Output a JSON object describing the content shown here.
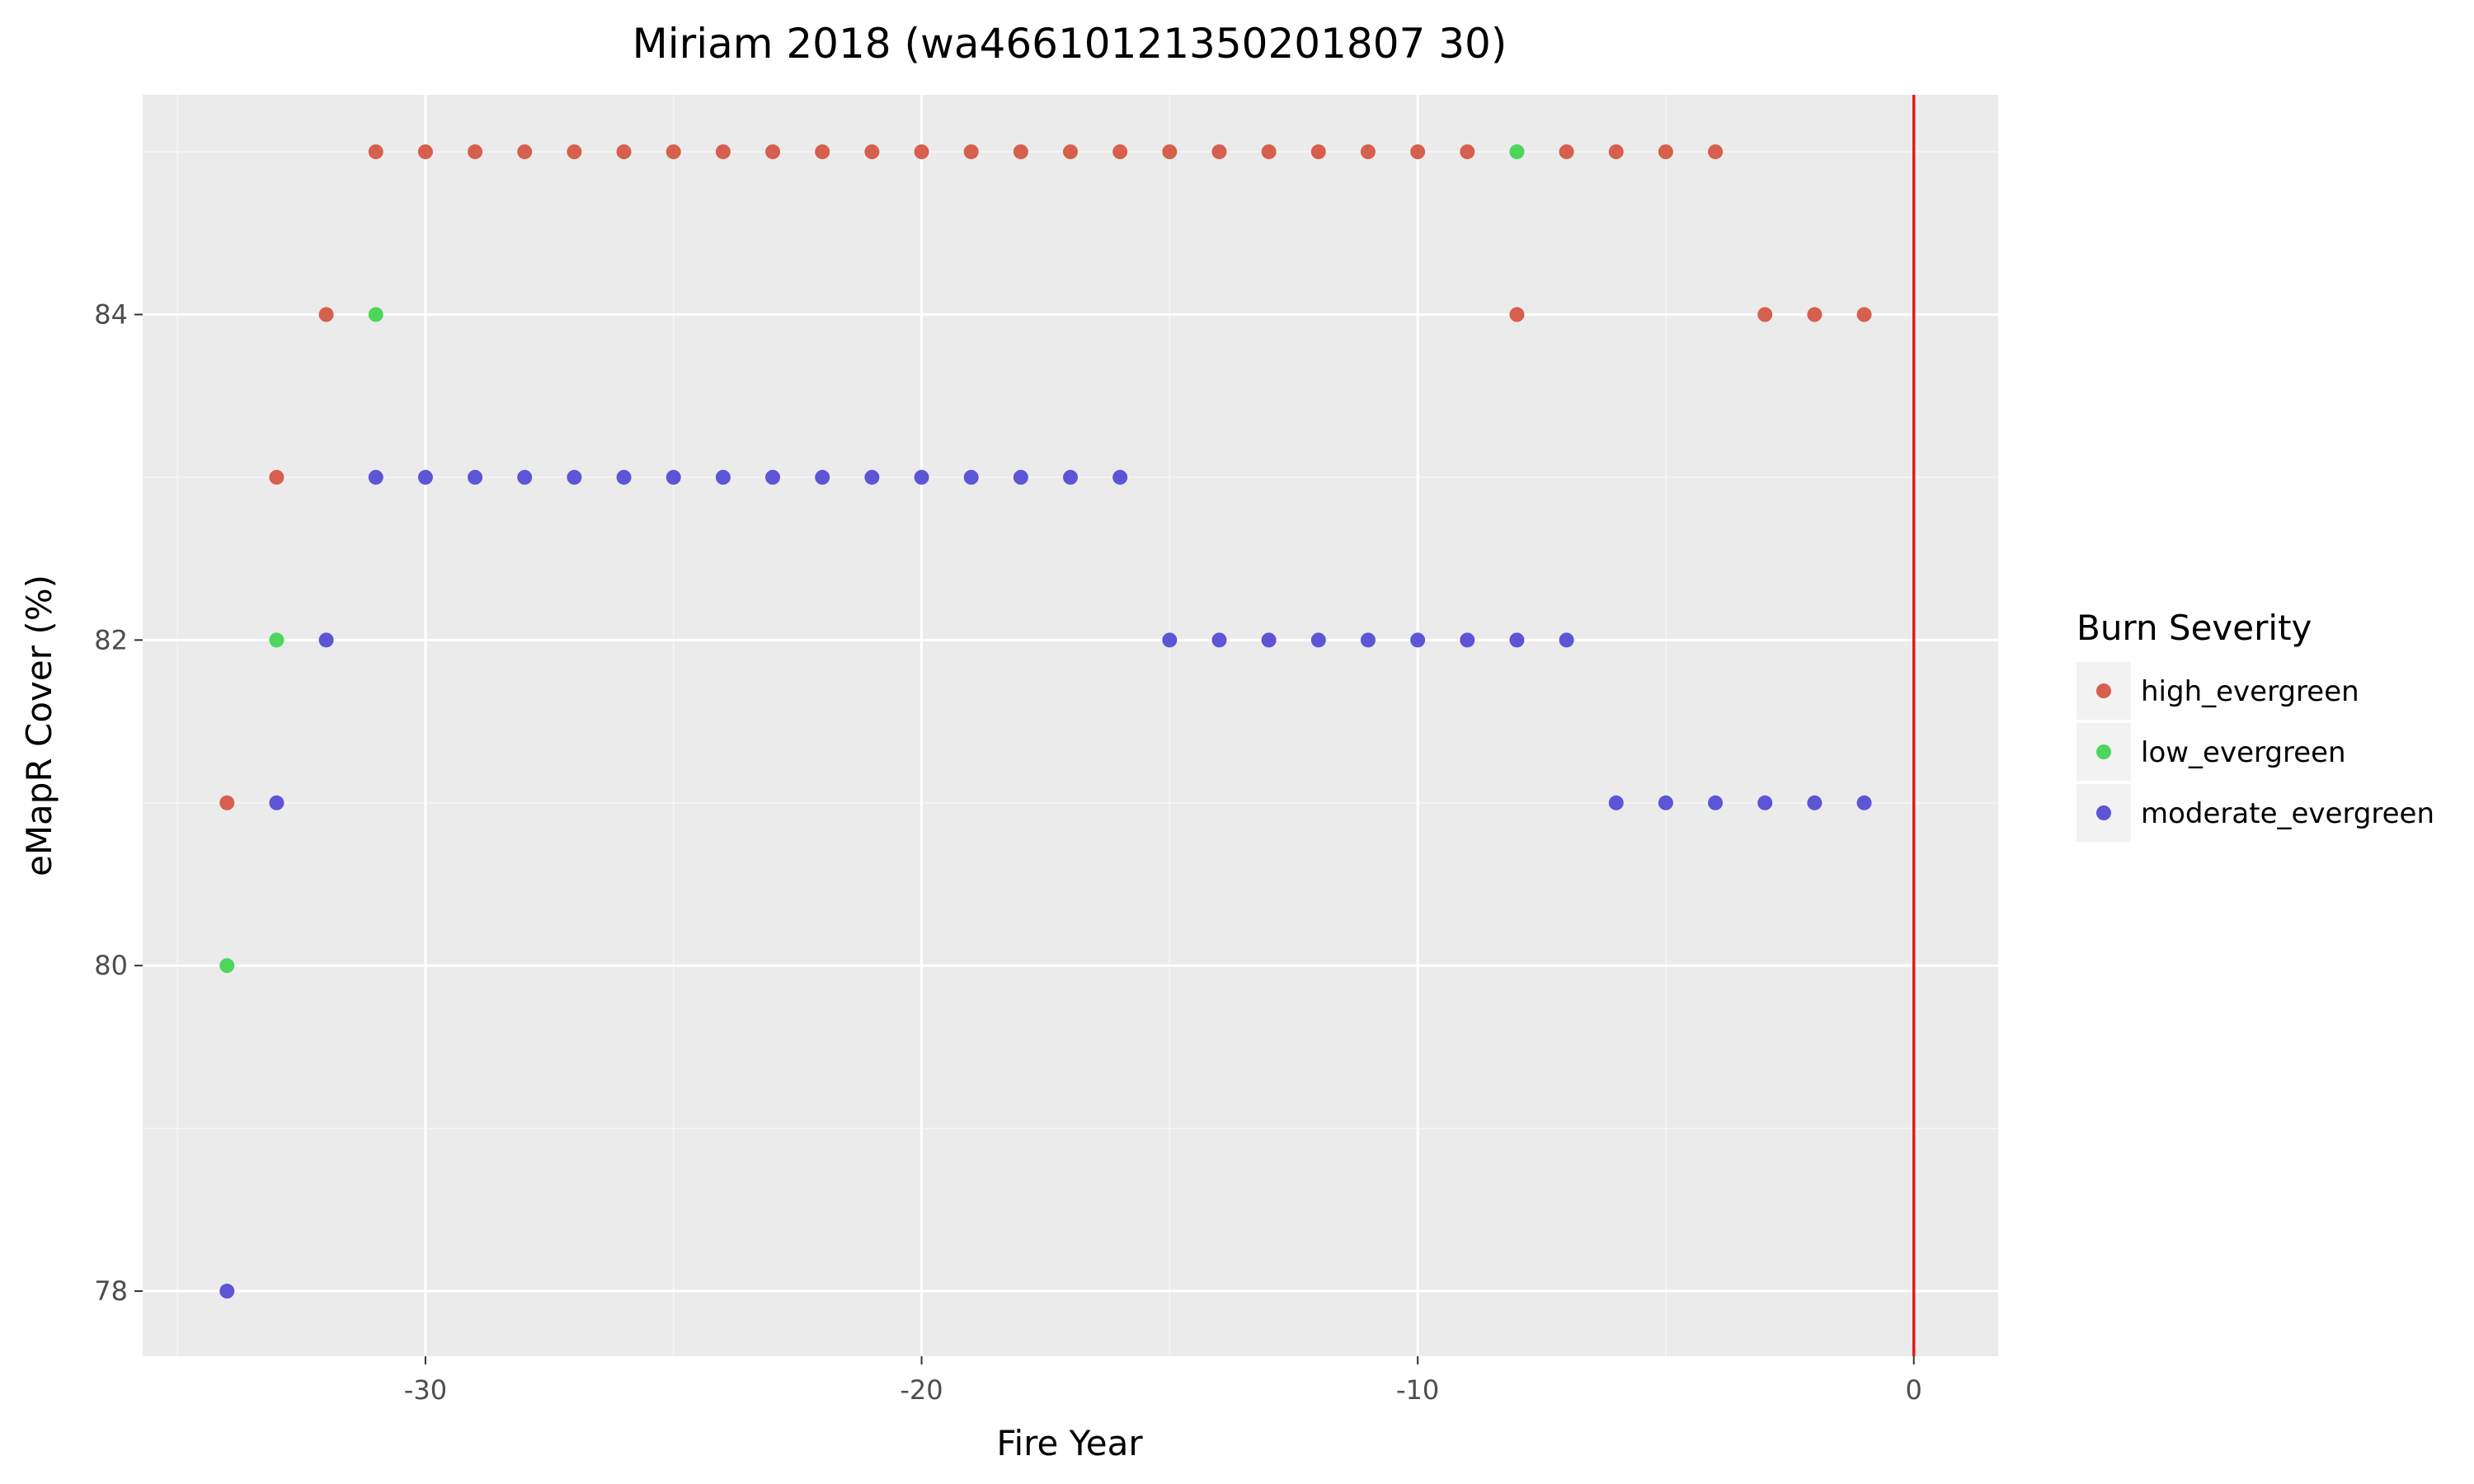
{
  "chart_data": {
    "type": "scatter",
    "title": "Miriam 2018 (wa46610121350201807 30)",
    "xlabel": "Fire Year",
    "ylabel": "eMapR Cover (%)",
    "xlim": [
      -35.7,
      1.7
    ],
    "ylim": [
      77.6,
      85.35
    ],
    "x_ticks": [
      "-30",
      "-20",
      "-10",
      "0"
    ],
    "y_ticks": [
      "78",
      "80",
      "82",
      "84"
    ],
    "grid": true,
    "panel_background": "#ebebeb",
    "reference_line": {
      "x": 0,
      "color": "#e41a1c"
    },
    "legend": {
      "title": "Burn Severity",
      "position": "right"
    },
    "series": [
      {
        "name": "high_evergreen",
        "color": "#d6604d",
        "points": [
          [
            -34,
            81
          ],
          [
            -33,
            83
          ],
          [
            -32,
            84
          ],
          [
            -31,
            85
          ],
          [
            -30,
            85
          ],
          [
            -29,
            85
          ],
          [
            -28,
            85
          ],
          [
            -27,
            85
          ],
          [
            -26,
            85
          ],
          [
            -25,
            85
          ],
          [
            -24,
            85
          ],
          [
            -23,
            85
          ],
          [
            -22,
            85
          ],
          [
            -21,
            85
          ],
          [
            -20,
            85
          ],
          [
            -19,
            85
          ],
          [
            -18,
            85
          ],
          [
            -17,
            85
          ],
          [
            -16,
            85
          ],
          [
            -15,
            85
          ],
          [
            -14,
            85
          ],
          [
            -13,
            85
          ],
          [
            -12,
            85
          ],
          [
            -11,
            85
          ],
          [
            -10,
            85
          ],
          [
            -9,
            85
          ],
          [
            -8,
            84
          ],
          [
            -7,
            85
          ],
          [
            -6,
            85
          ],
          [
            -5,
            85
          ],
          [
            -4,
            85
          ],
          [
            -3,
            84
          ],
          [
            -2,
            84
          ],
          [
            -1,
            84
          ]
        ]
      },
      {
        "name": "low_evergreen",
        "color": "#4dd65c",
        "points": [
          [
            -34,
            80
          ],
          [
            -33,
            82
          ],
          [
            -31,
            84
          ],
          [
            -8,
            85
          ]
        ]
      },
      {
        "name": "moderate_evergreen",
        "color": "#5c55d6",
        "points": [
          [
            -34,
            78
          ],
          [
            -33,
            81
          ],
          [
            -32,
            82
          ],
          [
            -31,
            83
          ],
          [
            -30,
            83
          ],
          [
            -29,
            83
          ],
          [
            -28,
            83
          ],
          [
            -27,
            83
          ],
          [
            -26,
            83
          ],
          [
            -25,
            83
          ],
          [
            -24,
            83
          ],
          [
            -23,
            83
          ],
          [
            -22,
            83
          ],
          [
            -21,
            83
          ],
          [
            -20,
            83
          ],
          [
            -19,
            83
          ],
          [
            -18,
            83
          ],
          [
            -17,
            83
          ],
          [
            -16,
            83
          ],
          [
            -15,
            82
          ],
          [
            -14,
            82
          ],
          [
            -13,
            82
          ],
          [
            -12,
            82
          ],
          [
            -11,
            82
          ],
          [
            -10,
            82
          ],
          [
            -9,
            82
          ],
          [
            -8,
            82
          ],
          [
            -7,
            82
          ],
          [
            -6,
            81
          ],
          [
            -5,
            81
          ],
          [
            -4,
            81
          ],
          [
            -3,
            81
          ],
          [
            -2,
            81
          ],
          [
            -1,
            81
          ]
        ]
      }
    ]
  }
}
